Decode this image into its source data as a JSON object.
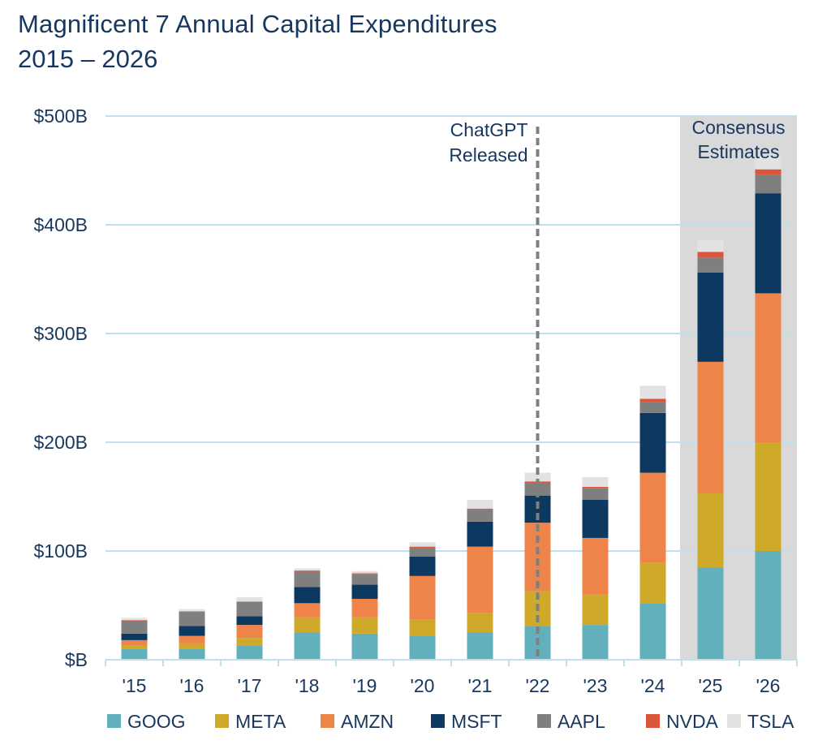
{
  "chart_data": {
    "type": "bar",
    "stacked": true,
    "title": "Magnificent 7 Annual Capital Expenditures",
    "subtitle": "2015 – 2026",
    "xlabel": "",
    "ylabel": "",
    "ylim": [
      0,
      500
    ],
    "y_ticks": [
      {
        "value": 0,
        "label": "$B"
      },
      {
        "value": 100,
        "label": "$100B"
      },
      {
        "value": 200,
        "label": "$200B"
      },
      {
        "value": 300,
        "label": "$300B"
      },
      {
        "value": 400,
        "label": "$400B"
      },
      {
        "value": 500,
        "label": "$500B"
      }
    ],
    "grid": true,
    "legend_position": "bottom",
    "categories": [
      "'15",
      "'16",
      "'17",
      "'18",
      "'19",
      "'20",
      "'21",
      "'22",
      "'23",
      "'24",
      "'25",
      "'26"
    ],
    "series": [
      {
        "name": "GOOG",
        "color": "#63b0bd",
        "values": [
          10,
          10,
          13,
          25,
          24,
          22,
          25,
          31,
          32,
          52,
          85,
          100
        ]
      },
      {
        "name": "META",
        "color": "#cea92a",
        "values": [
          3,
          5,
          7,
          14,
          15,
          15,
          18,
          32,
          28,
          37,
          68,
          100
        ]
      },
      {
        "name": "AMZN",
        "color": "#ee8449",
        "values": [
          5,
          7,
          12,
          13,
          17,
          40,
          61,
          63,
          52,
          83,
          121,
          137
        ]
      },
      {
        "name": "MSFT",
        "color": "#0d3860",
        "values": [
          6,
          9,
          8,
          15,
          13,
          18,
          23,
          25,
          35,
          55,
          82,
          92
        ]
      },
      {
        "name": "AAPL",
        "color": "#7f7f7f",
        "values": [
          12,
          13,
          13,
          14,
          10,
          8,
          11,
          11,
          11,
          10,
          14,
          17
        ]
      },
      {
        "name": "NVDA",
        "color": "#d9563a",
        "values": [
          0.5,
          0.5,
          0.5,
          1,
          0.5,
          1,
          1,
          2,
          1,
          3,
          5,
          5
        ]
      },
      {
        "name": "TSLA",
        "color": "#e2e2e2",
        "values": [
          2,
          2,
          4,
          2,
          2,
          4,
          8,
          8,
          9,
          12,
          11,
          12
        ]
      }
    ],
    "annotations": [
      {
        "type": "vline",
        "category": "'22",
        "label_lines": [
          "ChatGPT",
          "Released"
        ],
        "color": "#7f7f7f"
      },
      {
        "type": "shaded_region",
        "categories": [
          "'25",
          "'26"
        ],
        "label_lines": [
          "Consensus",
          "Estimates"
        ],
        "color": "#d9d9d9"
      }
    ]
  }
}
